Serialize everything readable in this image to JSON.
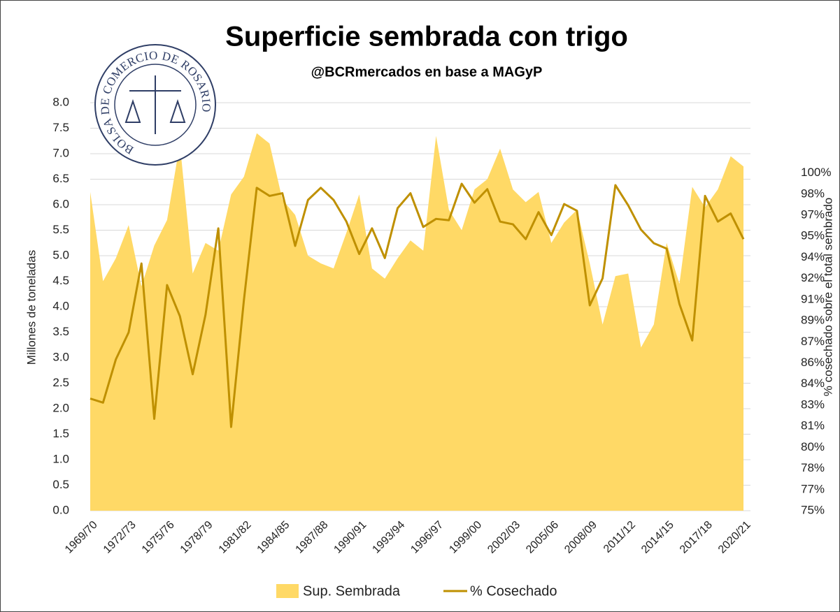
{
  "chart_data": {
    "type": "area_line",
    "title": "Superficie sembrada con trigo",
    "subtitle": "@BCRmercados en base a MAGyP",
    "logo_text": "BOLSA DE COMERCIO DE ROSARIO",
    "ylabel": "Millones de toneladas",
    "y2label": "% cosechado sobre el total sembrado",
    "categories": [
      "1969/70",
      null,
      null,
      "1972/73",
      null,
      null,
      "1975/76",
      null,
      null,
      "1978/79",
      null,
      null,
      "1981/82",
      null,
      null,
      "1984/85",
      null,
      null,
      "1987/88",
      null,
      null,
      "1990/91",
      null,
      null,
      "1993/94",
      null,
      null,
      "1996/97",
      null,
      null,
      "1999/00",
      null,
      null,
      "2002/03",
      null,
      null,
      "2005/06",
      null,
      null,
      "2008/09",
      null,
      null,
      "2011/12",
      null,
      null,
      "2014/15",
      null,
      null,
      "2017/18",
      null,
      null,
      "2020/21"
    ],
    "series": [
      {
        "name": "Sup. Sembrada",
        "color": "#ffd966",
        "kind": "area",
        "axis": "y",
        "values": [
          6.25,
          4.5,
          4.95,
          5.6,
          4.4,
          5.2,
          5.7,
          7.2,
          4.65,
          5.25,
          5.1,
          6.2,
          6.55,
          7.4,
          7.2,
          6.1,
          5.8,
          5.0,
          4.85,
          4.75,
          5.45,
          6.2,
          4.75,
          4.55,
          4.95,
          5.3,
          5.1,
          7.35,
          5.9,
          5.5,
          6.3,
          6.5,
          7.1,
          6.3,
          6.05,
          6.25,
          5.25,
          5.65,
          5.9,
          4.85,
          3.65,
          4.6,
          4.65,
          3.2,
          3.65,
          5.25,
          4.45,
          6.35,
          5.95,
          6.3,
          6.95,
          6.75
        ]
      },
      {
        "name": "% Cosechado",
        "color": "#bf9000",
        "kind": "line",
        "axis": "y2",
        "values": [
          83.3,
          83.0,
          86.2,
          88.2,
          93.3,
          81.8,
          91.7,
          89.4,
          85.1,
          89.5,
          95.9,
          81.2,
          90.6,
          98.9,
          98.3,
          98.5,
          94.6,
          98.0,
          98.9,
          98.0,
          96.4,
          94.0,
          95.9,
          93.7,
          97.4,
          98.5,
          96.0,
          96.6,
          96.5,
          99.2,
          97.8,
          98.8,
          96.4,
          96.2,
          95.1,
          97.1,
          95.4,
          97.7,
          97.2,
          90.2,
          92.2,
          99.1,
          97.6,
          95.8,
          94.8,
          94.4,
          90.3,
          87.6,
          98.3,
          96.4,
          97.0,
          95.1
        ]
      }
    ],
    "ylim": [
      0,
      8
    ],
    "yticks": [
      {
        "value": 0,
        "label": "0.0"
      },
      {
        "value": 0.5,
        "label": "0.5"
      },
      {
        "value": 1,
        "label": "1.0"
      },
      {
        "value": 1.5,
        "label": "1.5"
      },
      {
        "value": 2,
        "label": "2.0"
      },
      {
        "value": 2.5,
        "label": "2.5"
      },
      {
        "value": 3,
        "label": "3.0"
      },
      {
        "value": 3.5,
        "label": "3.5"
      },
      {
        "value": 4,
        "label": "4.0"
      },
      {
        "value": 4.5,
        "label": "4.5"
      },
      {
        "value": 5,
        "label": "5.0"
      },
      {
        "value": 5.5,
        "label": "5.5"
      },
      {
        "value": 6,
        "label": "6.0"
      },
      {
        "value": 6.5,
        "label": "6.5"
      },
      {
        "value": 7,
        "label": "7.0"
      },
      {
        "value": 7.5,
        "label": "7.5"
      },
      {
        "value": 8,
        "label": "8.0"
      }
    ],
    "y2lim": [
      75,
      105.2
    ],
    "y2ticks": [
      {
        "value": 75,
        "label": "75%"
      },
      {
        "value": 76.5625,
        "label": "77%"
      },
      {
        "value": 78.125,
        "label": "78%"
      },
      {
        "value": 79.6875,
        "label": "80%"
      },
      {
        "value": 81.25,
        "label": "81%"
      },
      {
        "value": 82.8125,
        "label": "83%"
      },
      {
        "value": 84.375,
        "label": "84%"
      },
      {
        "value": 85.9375,
        "label": "86%"
      },
      {
        "value": 87.5,
        "label": "87%"
      },
      {
        "value": 89.0625,
        "label": "89%"
      },
      {
        "value": 90.625,
        "label": "91%"
      },
      {
        "value": 92.1875,
        "label": "92%"
      },
      {
        "value": 93.75,
        "label": "94%"
      },
      {
        "value": 95.3125,
        "label": "95%"
      },
      {
        "value": 96.875,
        "label": "97%"
      },
      {
        "value": 98.4375,
        "label": "98%"
      },
      {
        "value": 100,
        "label": "100%"
      }
    ],
    "grid": true
  }
}
